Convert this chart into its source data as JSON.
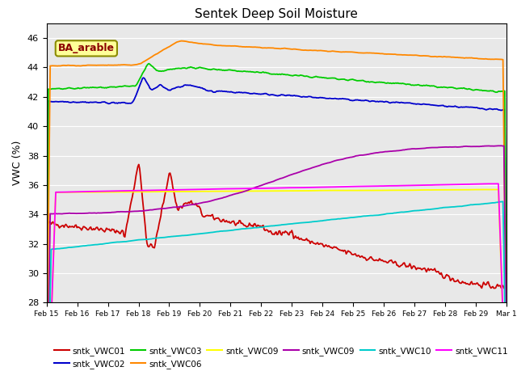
{
  "title": "Sentek Deep Soil Moisture",
  "ylabel": "VWC (%)",
  "ylim": [
    28,
    47
  ],
  "yticks": [
    28,
    30,
    32,
    34,
    36,
    38,
    40,
    42,
    44,
    46
  ],
  "annotation": "BA_arable",
  "background_color": "#e8e8e8",
  "xtick_labels": [
    "Feb 15",
    "Feb 16",
    "Feb 17",
    "Feb 18",
    "Feb 19",
    "Feb 20",
    "Feb 21",
    "Feb 22",
    "Feb 23",
    "Feb 24",
    "Feb 25",
    "Feb 26",
    "Feb 27",
    "Feb 28",
    "Feb 29",
    "Mar 1"
  ],
  "colors": {
    "red": "#cc0000",
    "blue": "#0000cc",
    "green": "#00cc00",
    "orange": "#ff8800",
    "yellow": "#ffff00",
    "purple": "#aa00aa",
    "cyan": "#00cccc",
    "magenta": "#ff00ff"
  },
  "legend_row1": [
    [
      "#cc0000",
      "sntk_VWC01"
    ],
    [
      "#0000cc",
      "sntk_VWC02"
    ],
    [
      "#00cc00",
      "sntk_VWC03"
    ],
    [
      "#ff8800",
      "sntk_VWC06"
    ],
    [
      "#ffff00",
      "sntk_VWC09"
    ],
    [
      "#aa00aa",
      "sntk_VWC09"
    ]
  ],
  "legend_row2": [
    [
      "#00cccc",
      "sntk_VWC10"
    ],
    [
      "#ff00ff",
      "sntk_VWC11"
    ]
  ],
  "n_points": 500
}
